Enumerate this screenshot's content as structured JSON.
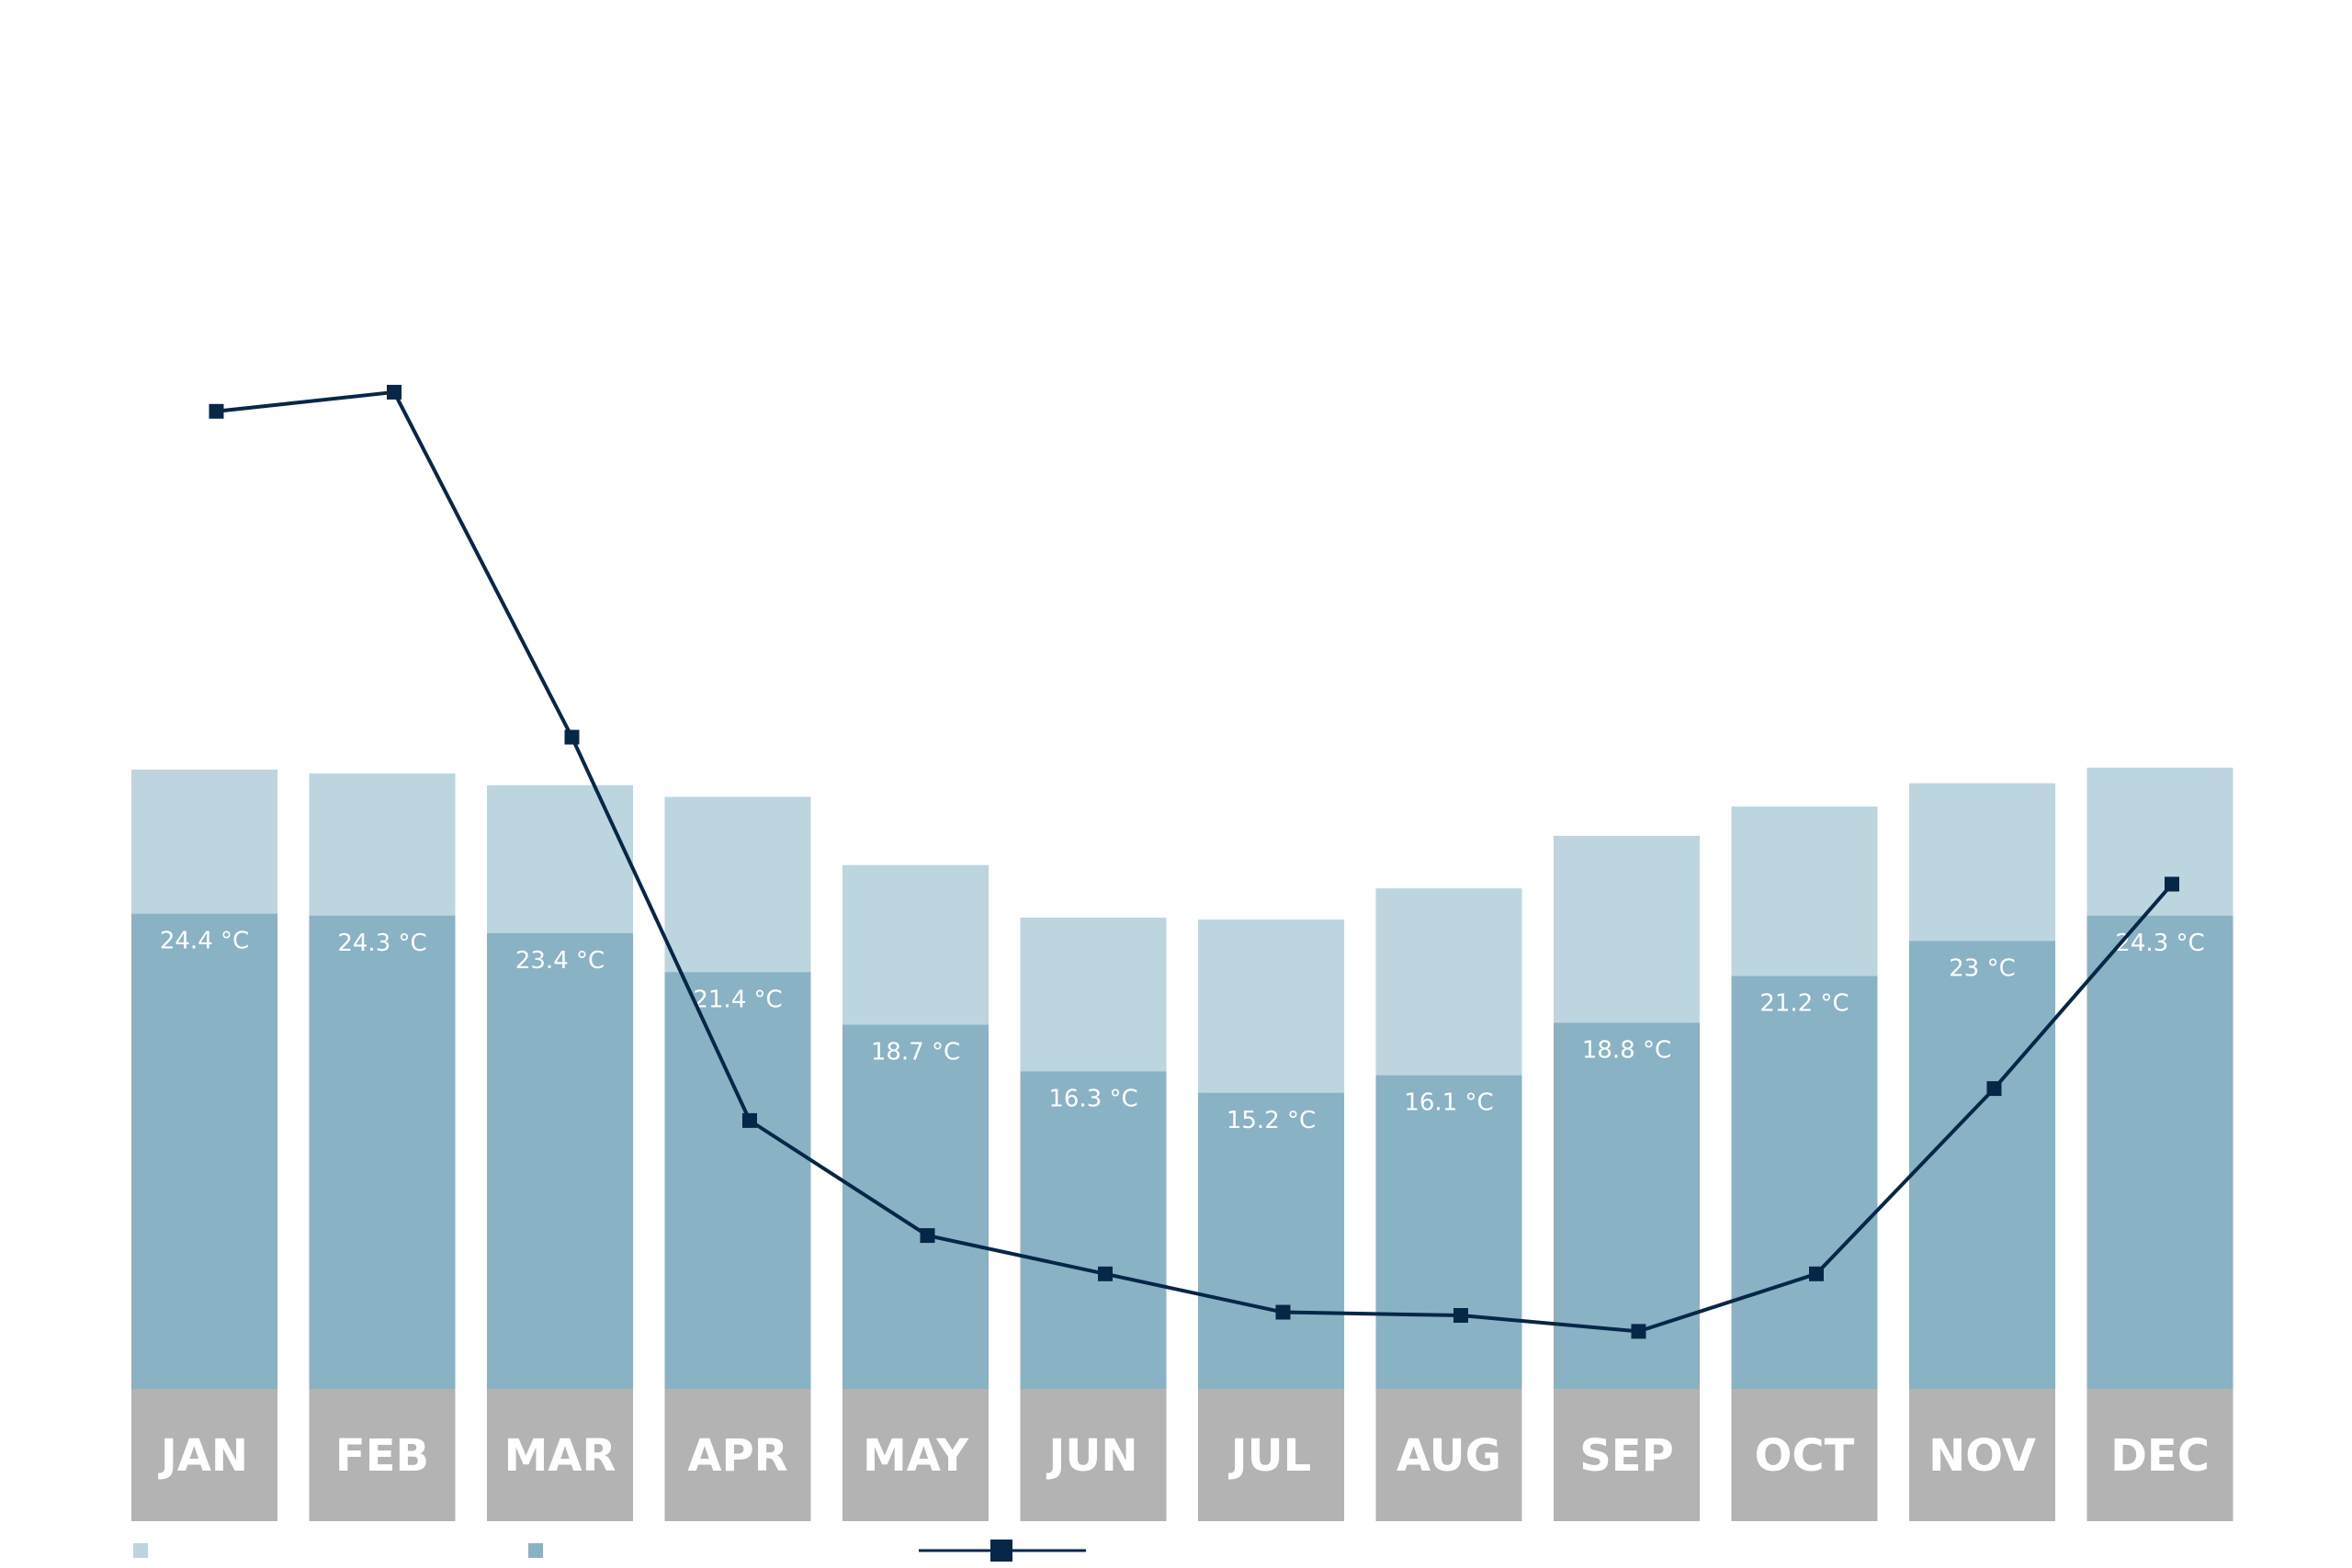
{
  "chart_data": {
    "type": "bar",
    "categories": [
      "JAN",
      "FEB",
      "MAR",
      "APR",
      "MAY",
      "JUN",
      "JUL",
      "AUG",
      "SEP",
      "OCT",
      "NOV",
      "DEC"
    ],
    "series": [
      {
        "role": "lower",
        "color": "#89b2c5",
        "values": [
          24.4,
          24.3,
          23.4,
          21.4,
          18.7,
          16.3,
          15.2,
          16.1,
          18.8,
          21.2,
          23.0,
          24.3
        ],
        "labels": [
          "24.4 °C",
          "24.3 °C",
          "23.4 °C",
          "21.4 °C",
          "18.7 °C",
          "16.3 °C",
          "15.2 °C",
          "16.1 °C",
          "18.8 °C",
          "21.2 °C",
          "23 °C",
          "24.3 °C"
        ]
      },
      {
        "role": "upper",
        "color": "#bdd5df",
        "values": [
          31.8,
          31.6,
          31.0,
          30.4,
          26.9,
          24.2,
          24.1,
          25.7,
          28.4,
          29.9,
          31.1,
          31.9
        ]
      },
      {
        "role": "line",
        "color": "#062747",
        "values": [
          143,
          146,
          92,
          32,
          14,
          8,
          2,
          1.5,
          -1,
          8,
          37,
          69
        ]
      }
    ],
    "ylim_bars": [
      0,
      35
    ],
    "ylim_line": [
      -10,
      170
    ],
    "legend": {
      "position": "bottom-left",
      "items": [
        {
          "marker": "square",
          "color": "#bdd5df"
        },
        {
          "marker": "square",
          "color": "#89b2c5"
        },
        {
          "marker": "line-square",
          "color": "#062747"
        }
      ]
    },
    "category_band_color": "#b3b3b3",
    "title": "",
    "xlabel": "",
    "ylabel": ""
  }
}
